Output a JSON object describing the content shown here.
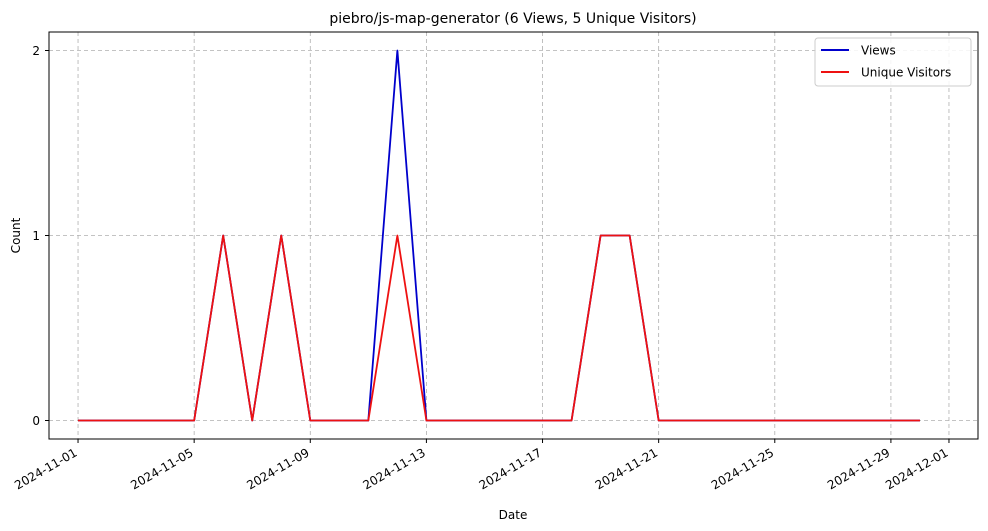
{
  "chart_data": {
    "type": "line",
    "title": "piebro/js-map-generator (6 Views, 5 Unique Visitors)",
    "xlabel": "Date",
    "ylabel": "Count",
    "x": [
      "2024-11-01",
      "2024-11-02",
      "2024-11-03",
      "2024-11-04",
      "2024-11-05",
      "2024-11-06",
      "2024-11-07",
      "2024-11-08",
      "2024-11-09",
      "2024-11-10",
      "2024-11-11",
      "2024-11-12",
      "2024-11-13",
      "2024-11-14",
      "2024-11-15",
      "2024-11-16",
      "2024-11-17",
      "2024-11-18",
      "2024-11-19",
      "2024-11-20",
      "2024-11-21",
      "2024-11-22",
      "2024-11-23",
      "2024-11-24",
      "2024-11-25",
      "2024-11-26",
      "2024-11-27",
      "2024-11-28",
      "2024-11-29",
      "2024-11-30"
    ],
    "series": [
      {
        "name": "Views",
        "color": "#0000cc",
        "values": [
          0,
          0,
          0,
          0,
          0,
          1,
          0,
          1,
          0,
          0,
          0,
          2,
          0,
          0,
          0,
          0,
          0,
          0,
          1,
          1,
          0,
          0,
          0,
          0,
          0,
          0,
          0,
          0,
          0,
          0
        ]
      },
      {
        "name": "Unique Visitors",
        "color": "#ee1111",
        "values": [
          0,
          0,
          0,
          0,
          0,
          1,
          0,
          1,
          0,
          0,
          0,
          1,
          0,
          0,
          0,
          0,
          0,
          0,
          1,
          1,
          0,
          0,
          0,
          0,
          0,
          0,
          0,
          0,
          0,
          0
        ]
      }
    ],
    "xticks": [
      "2024-11-01",
      "2024-11-05",
      "2024-11-09",
      "2024-11-13",
      "2024-11-17",
      "2024-11-21",
      "2024-11-25",
      "2024-11-29",
      "2024-12-01"
    ],
    "yticks": [
      0,
      1,
      2
    ],
    "xlim": [
      "2024-10-31",
      "2024-12-02"
    ],
    "ylim": [
      -0.1,
      2.1
    ],
    "grid": true,
    "legend_position": "top-right"
  }
}
